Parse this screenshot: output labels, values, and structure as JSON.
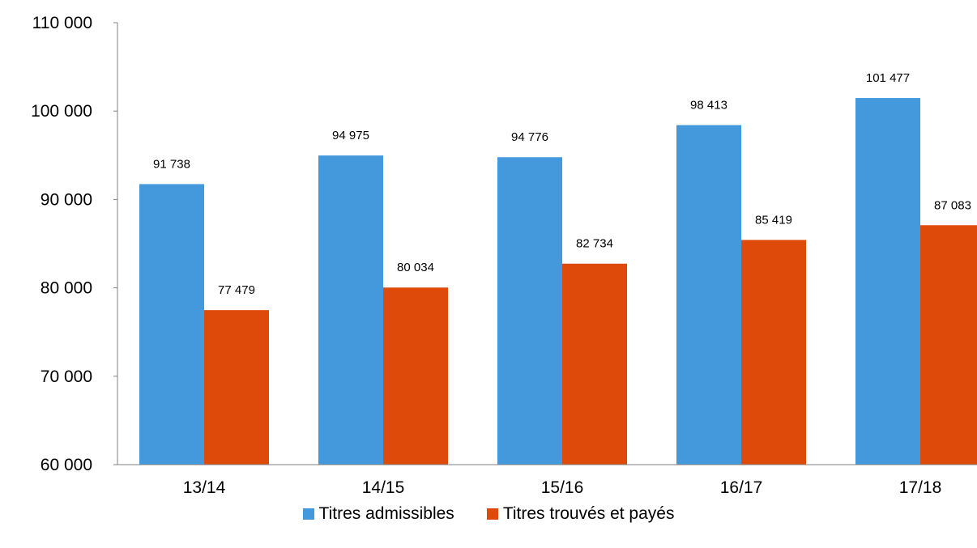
{
  "chart_data": {
    "type": "bar",
    "title": "",
    "xlabel": "",
    "ylabel": "",
    "categories": [
      "13/14",
      "14/15",
      "15/16",
      "16/17",
      "17/18"
    ],
    "ylim": [
      60000,
      110000
    ],
    "yticks": [
      60000,
      70000,
      80000,
      90000,
      100000,
      110000
    ],
    "ytick_labels": [
      "60 000",
      "70 000",
      "80 000",
      "90 000",
      "100 000",
      "110 000"
    ],
    "series": [
      {
        "name": "Titres admissibles",
        "color": "#4499DD",
        "values": [
          91738,
          94975,
          94776,
          98413,
          101477
        ],
        "labels": [
          "91 738",
          "94 975",
          "94 776",
          "98 413",
          "101 477"
        ]
      },
      {
        "name": "Titres trouvés et payés",
        "color": "#DD4A0A",
        "values": [
          77479,
          80034,
          82734,
          85419,
          87083
        ],
        "labels": [
          "77 479",
          "80 034",
          "82 734",
          "85 419",
          "87 083"
        ]
      }
    ],
    "grid": false,
    "legend": "bottom-center"
  }
}
